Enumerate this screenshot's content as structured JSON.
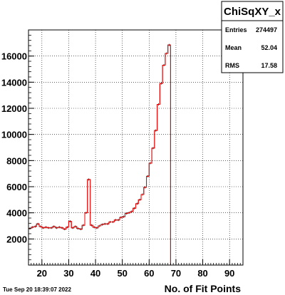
{
  "chart_data": {
    "type": "histogram",
    "title": "",
    "xlabel": "No. of Fit Points",
    "ylabel": "",
    "xlim": [
      15,
      95
    ],
    "ylim": [
      0,
      18000
    ],
    "x_ticks": [
      20,
      30,
      40,
      50,
      60,
      70,
      80,
      90
    ],
    "y_ticks": [
      2000,
      4000,
      6000,
      8000,
      10000,
      12000,
      14000,
      16000
    ],
    "grid": true,
    "bin_width": 1,
    "bin_edges_start": 15,
    "counts": [
      2800,
      2900,
      2950,
      3150,
      2950,
      2850,
      2900,
      2850,
      2850,
      2950,
      2850,
      2900,
      2850,
      2750,
      2900,
      3350,
      2850,
      2950,
      2800,
      2750,
      3050,
      4000,
      6550,
      3050,
      2900,
      2850,
      3000,
      3100,
      3150,
      3150,
      3300,
      3300,
      3450,
      3450,
      3650,
      3700,
      3950,
      4000,
      4100,
      4350,
      4700,
      5000,
      5400,
      5950,
      6800,
      7800,
      8950,
      10300,
      12300,
      13900,
      15300,
      16200,
      16850,
      0,
      0,
      0,
      0,
      0,
      0,
      0,
      0,
      0,
      0,
      0,
      0,
      0,
      0,
      0,
      0,
      0,
      0,
      0,
      0,
      0,
      0,
      0,
      0,
      0,
      0,
      0
    ],
    "legend": "top-right",
    "stats": {
      "name": "ChiSqXY_x",
      "entries_label": "Entries",
      "entries": "274497",
      "mean_label": "Mean",
      "mean": "52.04",
      "rms_label": "RMS",
      "rms": "17.58"
    }
  },
  "timestamp": "Tue Sep 20 18:39:07 2022",
  "colors": {
    "data_line": "#000000",
    "fit_line": "#ff0000",
    "frame": "#000000",
    "background": "#ffffff"
  }
}
